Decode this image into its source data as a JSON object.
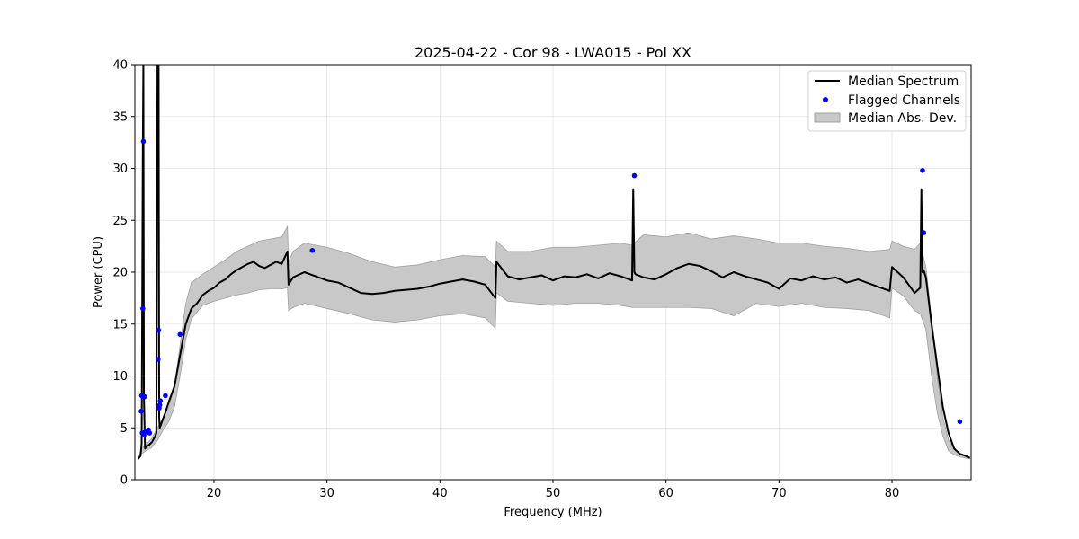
{
  "chart_data": {
    "type": "line",
    "title": "2025-04-22 - Cor 98 - LWA015 - Pol XX",
    "xlabel": "Frequency (MHz)",
    "ylabel": "Power (CPU)",
    "xlim": [
      13.0,
      87.0
    ],
    "ylim": [
      0,
      40
    ],
    "xticks": [
      20,
      30,
      40,
      50,
      60,
      70,
      80
    ],
    "yticks": [
      0,
      5,
      10,
      15,
      20,
      25,
      30,
      35,
      40
    ],
    "grid": true,
    "legend_position": "top-right",
    "colors": {
      "median": "#000000",
      "flagged": "#0000ff",
      "band_fill": "#c8c8c8",
      "band_edge": "#a0a0a0"
    },
    "series": [
      {
        "name": "Median Spectrum",
        "kind": "line",
        "x": [
          13.3,
          13.5,
          13.6,
          13.7,
          13.75,
          13.8,
          13.9,
          14.0,
          14.2,
          14.5,
          14.8,
          14.9,
          15.0,
          15.05,
          15.1,
          15.15,
          15.2,
          15.4,
          15.7,
          16.0,
          16.5,
          17.0,
          17.5,
          18.0,
          18.5,
          19.0,
          19.5,
          20.0,
          20.5,
          21.0,
          21.5,
          22.0,
          22.5,
          23.0,
          23.5,
          24.0,
          24.5,
          25.0,
          25.5,
          26.0,
          26.5,
          26.6,
          27.0,
          28.0,
          29.0,
          30.0,
          31.0,
          32.0,
          33.0,
          34.0,
          35.0,
          36.0,
          37.0,
          38.0,
          39.0,
          40.0,
          41.0,
          42.0,
          43.0,
          44.0,
          44.9,
          45.0,
          46.0,
          47.0,
          48.0,
          49.0,
          50.0,
          51.0,
          52.0,
          53.0,
          54.0,
          55.0,
          56.0,
          57.0,
          57.1,
          57.2,
          57.3,
          58.0,
          59.0,
          60.0,
          61.0,
          62.0,
          63.0,
          64.0,
          65.0,
          66.0,
          67.0,
          68.0,
          69.0,
          70.0,
          71.0,
          72.0,
          73.0,
          74.0,
          75.0,
          76.0,
          77.0,
          78.0,
          79.0,
          79.8,
          80.0,
          81.0,
          82.0,
          82.5,
          82.6,
          82.7,
          82.8,
          83.0,
          83.5,
          84.0,
          84.5,
          85.0,
          85.5,
          86.0,
          86.5,
          86.9
        ],
        "y": [
          2.0,
          2.3,
          3.5,
          31.0,
          40.0,
          8.0,
          3.0,
          3.2,
          3.3,
          3.6,
          4.2,
          4.5,
          40.0,
          40.0,
          40.0,
          6.0,
          5.0,
          5.6,
          6.5,
          7.5,
          9.0,
          12.0,
          15.0,
          16.5,
          17.0,
          17.8,
          18.2,
          18.5,
          19.0,
          19.3,
          19.8,
          20.2,
          20.5,
          20.8,
          21.0,
          20.6,
          20.4,
          20.7,
          21.0,
          20.8,
          22.0,
          18.8,
          19.5,
          20.0,
          19.6,
          19.2,
          19.0,
          18.5,
          18.0,
          17.9,
          18.0,
          18.2,
          18.3,
          18.4,
          18.6,
          18.9,
          19.1,
          19.3,
          19.1,
          18.8,
          17.5,
          21.0,
          19.6,
          19.3,
          19.5,
          19.7,
          19.2,
          19.6,
          19.5,
          19.8,
          19.4,
          19.9,
          19.6,
          19.2,
          28.0,
          20.0,
          19.8,
          19.5,
          19.3,
          19.8,
          20.4,
          20.8,
          20.6,
          20.1,
          19.5,
          20.0,
          19.6,
          19.3,
          19.0,
          18.4,
          19.4,
          19.2,
          19.6,
          19.3,
          19.5,
          19.0,
          19.3,
          18.9,
          18.5,
          18.2,
          20.5,
          19.5,
          18.0,
          18.5,
          28.0,
          20.0,
          20.2,
          19.5,
          15.0,
          11.0,
          7.0,
          4.5,
          3.0,
          2.5,
          2.3,
          2.1
        ]
      },
      {
        "name": "Flagged Channels",
        "kind": "scatter",
        "x": [
          13.55,
          13.6,
          13.65,
          13.7,
          13.75,
          13.8,
          13.85,
          13.9,
          14.0,
          14.2,
          14.3,
          15.05,
          15.1,
          15.15,
          15.2,
          15.25,
          15.7,
          17.0,
          28.7,
          57.2,
          82.7,
          82.8,
          86.0
        ],
        "y": [
          6.6,
          8.1,
          4.5,
          16.5,
          32.6,
          4.3,
          8.0,
          4.6,
          4.7,
          4.8,
          4.5,
          11.6,
          14.4,
          6.9,
          7.2,
          7.6,
          8.1,
          14.0,
          22.1,
          29.3,
          29.8,
          23.8,
          5.6
        ]
      },
      {
        "name": "Median Abs. Dev.",
        "kind": "band",
        "x": [
          13.3,
          13.6,
          14.0,
          14.5,
          15.0,
          15.5,
          16.0,
          16.5,
          17.0,
          17.5,
          18.0,
          19.0,
          20.0,
          21.0,
          22.0,
          23.0,
          24.0,
          25.0,
          26.0,
          26.5,
          26.6,
          27.0,
          28.0,
          30.0,
          32.0,
          34.0,
          36.0,
          38.0,
          40.0,
          42.0,
          44.0,
          44.9,
          45.0,
          46.0,
          48.0,
          50.0,
          52.0,
          54.0,
          56.0,
          57.0,
          58.0,
          60.0,
          62.0,
          64.0,
          66.0,
          68.0,
          70.0,
          72.0,
          74.0,
          76.0,
          78.0,
          79.8,
          80.0,
          81.0,
          82.0,
          82.5,
          83.0,
          83.5,
          84.0,
          84.5,
          85.0,
          85.5,
          86.0,
          86.9
        ],
        "lower": [
          2.0,
          2.5,
          2.8,
          3.1,
          3.8,
          4.8,
          5.6,
          7.0,
          10.0,
          13.5,
          15.5,
          16.8,
          17.2,
          17.5,
          17.8,
          18.0,
          18.3,
          18.4,
          18.4,
          18.5,
          16.3,
          16.6,
          17.0,
          16.5,
          16.0,
          15.4,
          15.2,
          15.4,
          15.8,
          16.0,
          15.6,
          14.6,
          18.0,
          17.2,
          17.0,
          16.8,
          17.0,
          17.0,
          16.8,
          16.6,
          16.6,
          16.6,
          16.6,
          16.5,
          15.8,
          17.0,
          16.7,
          17.0,
          16.6,
          16.5,
          16.3,
          15.6,
          18.5,
          17.7,
          16.3,
          16.0,
          14.5,
          10.0,
          6.5,
          4.2,
          2.8,
          2.4,
          2.2,
          2.0
        ],
        "upper": [
          2.1,
          3.0,
          3.4,
          4.0,
          5.0,
          6.0,
          7.0,
          9.0,
          13.0,
          17.0,
          19.0,
          19.8,
          20.5,
          21.2,
          22.0,
          22.5,
          23.0,
          23.2,
          23.4,
          24.4,
          21.0,
          22.0,
          22.8,
          22.4,
          21.8,
          21.0,
          20.5,
          20.7,
          21.2,
          21.6,
          21.5,
          20.5,
          23.0,
          22.0,
          22.0,
          22.4,
          22.4,
          22.6,
          22.8,
          22.6,
          23.6,
          23.4,
          23.8,
          23.2,
          23.5,
          23.2,
          22.8,
          22.8,
          22.5,
          22.3,
          22.0,
          22.2,
          23.0,
          22.5,
          22.2,
          22.8,
          20.5,
          15.5,
          10.0,
          6.0,
          3.8,
          3.0,
          2.5,
          2.0
        ]
      }
    ]
  }
}
